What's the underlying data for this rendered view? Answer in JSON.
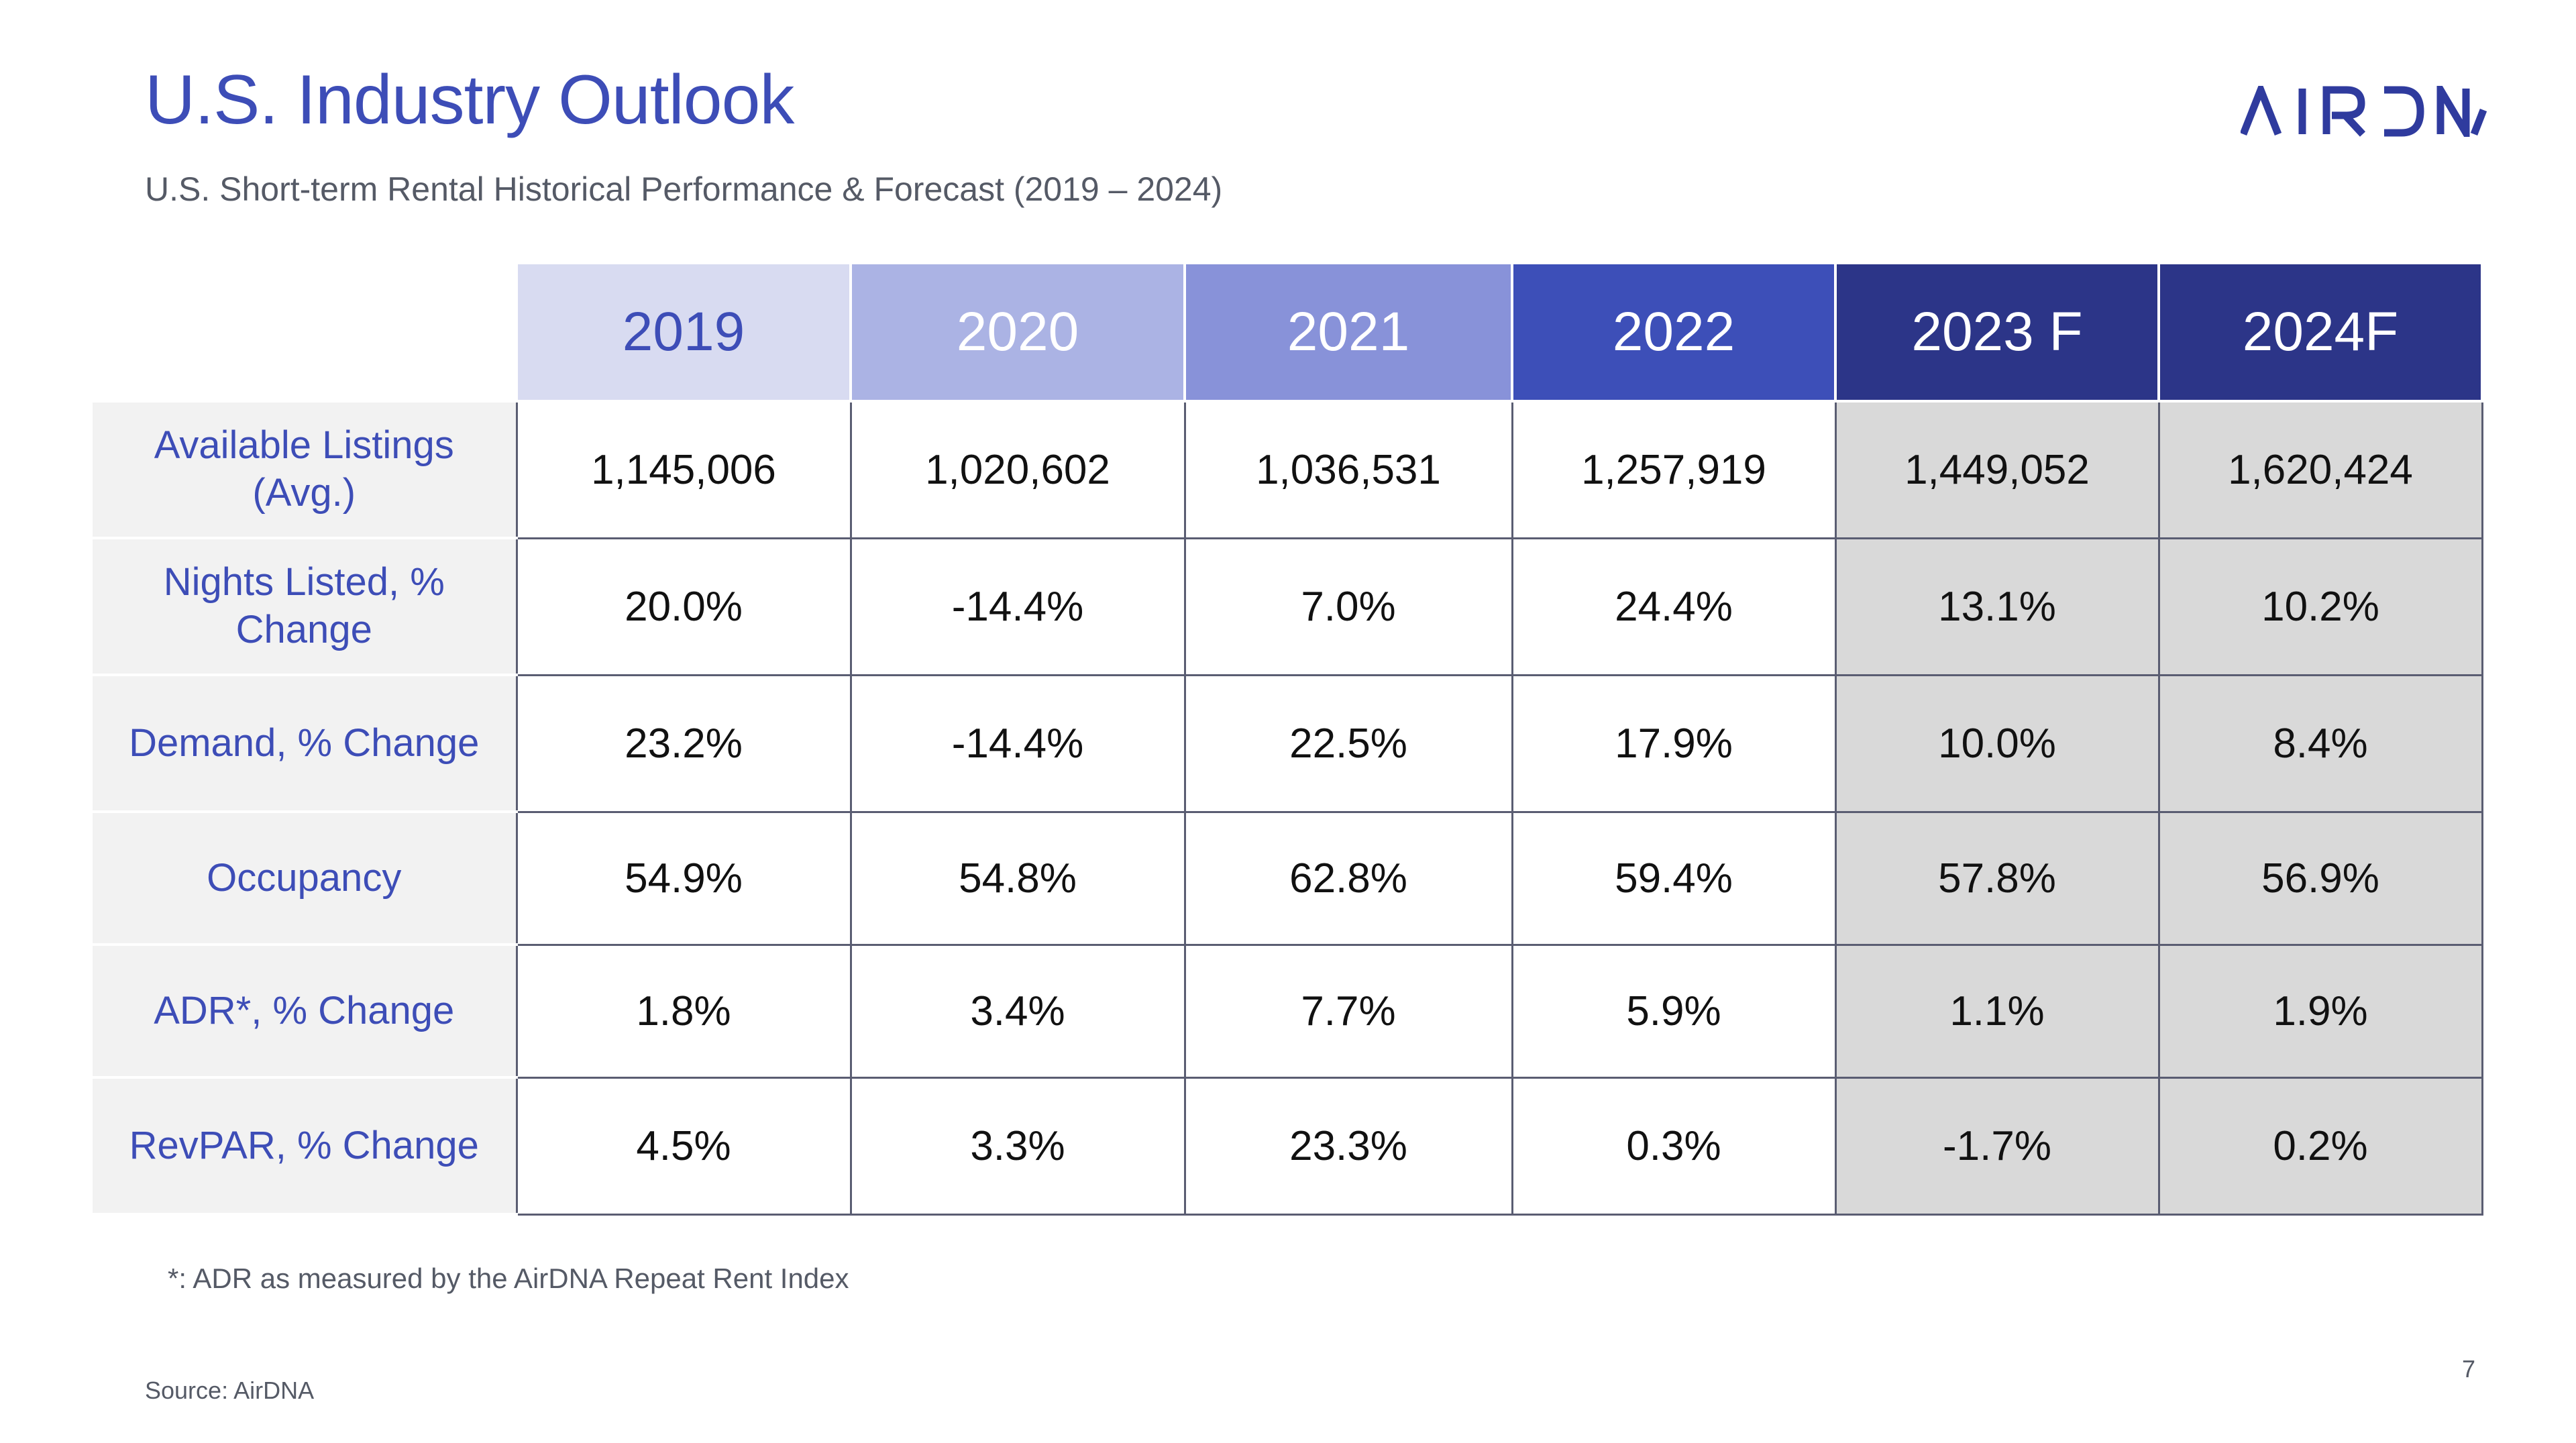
{
  "header": {
    "title": "U.S. Industry Outlook",
    "subtitle": "U.S. Short-term Rental Historical Performance & Forecast (2019 – 2024)",
    "logo_text": "AIRDNA"
  },
  "table": {
    "columns": [
      "2019",
      "2020",
      "2021",
      "2022",
      "2023 F",
      "2024F"
    ],
    "rows": [
      {
        "label_lines": [
          "Available Listings",
          "(Avg.)"
        ],
        "values": [
          "1,145,006",
          "1,020,602",
          "1,036,531",
          "1,257,919",
          "1,449,052",
          "1,620,424"
        ]
      },
      {
        "label_lines": [
          "Nights Listed, %",
          "Change"
        ],
        "values": [
          "20.0%",
          "-14.4%",
          "7.0%",
          "24.4%",
          "13.1%",
          "10.2%"
        ]
      },
      {
        "label_lines": [
          "Demand, % Change"
        ],
        "values": [
          "23.2%",
          "-14.4%",
          "22.5%",
          "17.9%",
          "10.0%",
          "8.4%"
        ]
      },
      {
        "label_lines": [
          "Occupancy"
        ],
        "values": [
          "54.9%",
          "54.8%",
          "62.8%",
          "59.4%",
          "57.8%",
          "56.9%"
        ]
      },
      {
        "label_lines": [
          "ADR*, % Change"
        ],
        "values": [
          "1.8%",
          "3.4%",
          "7.7%",
          "5.9%",
          "1.1%",
          "1.9%"
        ]
      },
      {
        "label_lines": [
          "RevPAR, % Change"
        ],
        "values": [
          "4.5%",
          "3.3%",
          "23.3%",
          "0.3%",
          "-1.7%",
          "0.2%"
        ]
      }
    ]
  },
  "footer": {
    "footnote": "*: ADR as measured by the AirDNA Repeat Rent Index",
    "source": "Source: AirDNA",
    "page_number": "7"
  },
  "colors": {
    "accent": "#3d4db7",
    "header_2019": "#d8dbf1",
    "header_2020": "#abb3e4",
    "header_2021": "#8892d9",
    "header_2022": "#3d4fb8",
    "header_forecast": "#2c3588",
    "forecast_cell": "#d9d9d9",
    "label_bg": "#f2f2f2"
  }
}
